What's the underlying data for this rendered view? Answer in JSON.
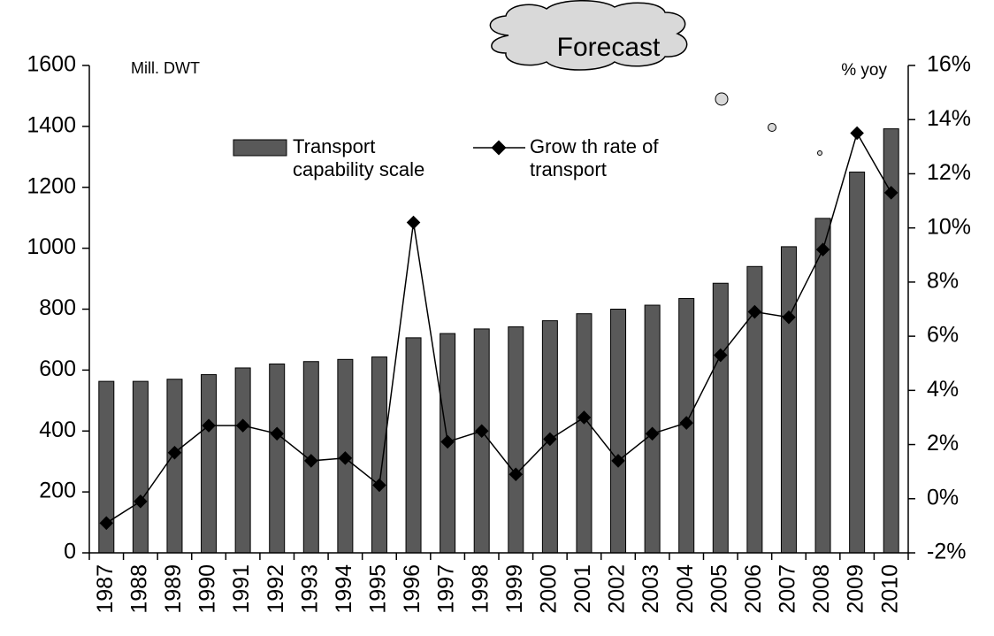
{
  "chart_data": {
    "type": "bar_line",
    "y_label": "Mill. DWT",
    "y2_label": "% yoy",
    "annotation": "Forecast",
    "categories": [
      "1987",
      "1988",
      "1989",
      "1990",
      "1991",
      "1992",
      "1993",
      "1994",
      "1995",
      "1996",
      "1997",
      "1998",
      "1999",
      "2000",
      "2001",
      "2002",
      "2003",
      "2004",
      "2005",
      "2006",
      "2007",
      "2008",
      "2009",
      "2010"
    ],
    "series": [
      {
        "name": "Transport capability scale",
        "color": "#595959",
        "values": [
          563,
          563,
          570,
          585,
          607,
          620,
          628,
          635,
          643,
          706,
          720,
          735,
          742,
          762,
          785,
          800,
          813,
          835,
          885,
          940,
          1005,
          1098,
          1250,
          1392
        ]
      },
      {
        "name": "Grow th rate of transport",
        "color": "#000000",
        "axis": "y2",
        "values": [
          -0.9,
          -0.1,
          1.7,
          2.7,
          2.7,
          2.4,
          1.4,
          1.5,
          0.5,
          10.2,
          2.1,
          2.5,
          0.9,
          2.2,
          3.0,
          1.4,
          2.4,
          2.8,
          5.3,
          6.9,
          6.7,
          9.2,
          13.5,
          11.3
        ]
      }
    ],
    "ylim": [
      0,
      1600
    ],
    "yticks": [
      0,
      200,
      400,
      600,
      800,
      1000,
      1200,
      1400,
      1600
    ],
    "y2lim": [
      -2,
      16
    ],
    "y2ticks": [
      {
        "value": -2,
        "label": "-2%"
      },
      {
        "value": 0,
        "label": "0%"
      },
      {
        "value": 2,
        "label": "2%"
      },
      {
        "value": 4,
        "label": "4%"
      },
      {
        "value": 6,
        "label": "6%"
      },
      {
        "value": 8,
        "label": "8%"
      },
      {
        "value": 10,
        "label": "10%"
      },
      {
        "value": 12,
        "label": "12%"
      },
      {
        "value": 14,
        "label": "14%"
      },
      {
        "value": 16,
        "label": "16%"
      }
    ]
  }
}
